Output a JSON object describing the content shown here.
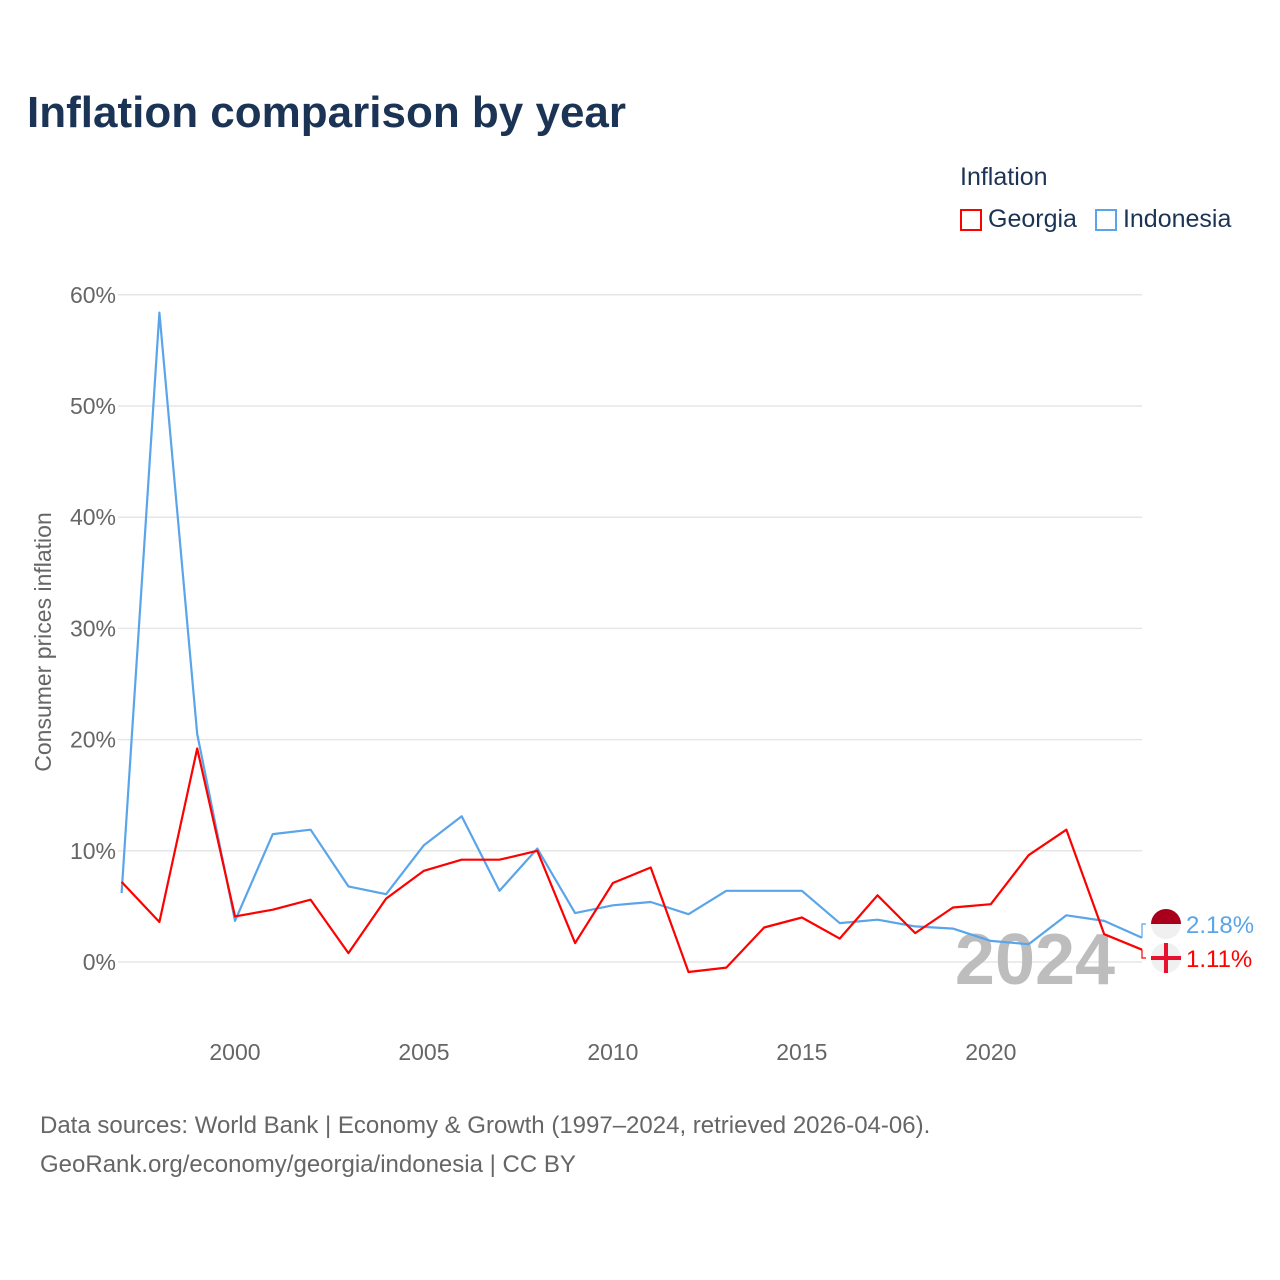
{
  "title": "Inflation comparison by year",
  "legend": {
    "title": "Inflation",
    "items": [
      {
        "label": "Georgia",
        "color": "#ff0000"
      },
      {
        "label": "Indonesia",
        "color": "#5aa5ea"
      }
    ]
  },
  "footer": {
    "line1": "Data sources: World Bank | Economy & Growth (1997–2024, retrieved 2026-04-06).",
    "line2": "GeoRank.org/economy/georgia/indonesia | CC BY"
  },
  "chart_data": {
    "type": "line",
    "title": "Inflation comparison by year",
    "xlabel": "",
    "ylabel": "Consumer prices inflation",
    "x": [
      1997,
      1998,
      1999,
      2000,
      2001,
      2002,
      2003,
      2004,
      2005,
      2006,
      2007,
      2008,
      2009,
      2010,
      2011,
      2012,
      2013,
      2014,
      2015,
      2016,
      2017,
      2018,
      2019,
      2020,
      2021,
      2022,
      2023,
      2024
    ],
    "xlim": [
      1997,
      2024
    ],
    "ylim": [
      -8,
      60
    ],
    "x_ticks": [
      2000,
      2005,
      2010,
      2015,
      2020
    ],
    "x_tick_labels": [
      "2000",
      "2005",
      "2010",
      "2015",
      "2020"
    ],
    "y_ticks": [
      0,
      10,
      20,
      30,
      40,
      50,
      60
    ],
    "y_tick_labels": [
      "0%",
      "10%",
      "20%",
      "30%",
      "40%",
      "50%",
      "60%"
    ],
    "grid": true,
    "legend_position": "top-right",
    "year_watermark": "2024",
    "series": [
      {
        "name": "Georgia",
        "color": "#ff0000",
        "end_label": "1.11%",
        "values": [
          7.2,
          3.6,
          19.2,
          4.1,
          4.7,
          5.6,
          0.8,
          5.7,
          8.2,
          9.2,
          9.2,
          10.0,
          1.7,
          7.1,
          8.5,
          -0.9,
          -0.5,
          3.1,
          4.0,
          2.1,
          6.0,
          2.6,
          4.9,
          5.2,
          9.6,
          11.9,
          2.5,
          1.11
        ]
      },
      {
        "name": "Indonesia",
        "color": "#5aa5ea",
        "end_label": "2.18%",
        "values": [
          6.2,
          58.4,
          20.5,
          3.7,
          11.5,
          11.9,
          6.8,
          6.1,
          10.5,
          13.1,
          6.4,
          10.2,
          4.4,
          5.1,
          5.4,
          4.3,
          6.4,
          6.4,
          6.4,
          3.5,
          3.8,
          3.2,
          3.0,
          1.9,
          1.6,
          4.2,
          3.7,
          2.18
        ]
      }
    ]
  }
}
